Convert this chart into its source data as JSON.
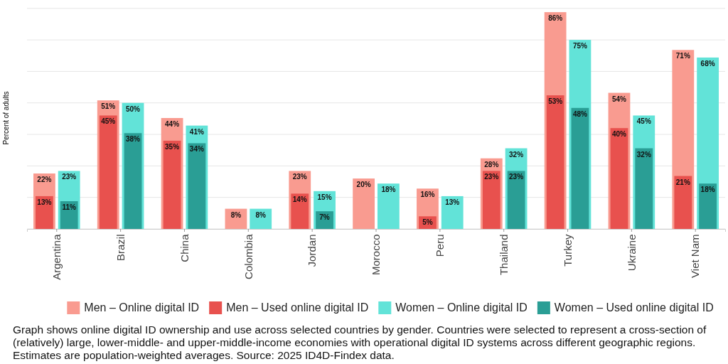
{
  "chart_data": {
    "type": "bar",
    "ylabel": "Percent of adults",
    "categories": [
      "Argentina",
      "Brazil",
      "China",
      "Colombia",
      "Jordan",
      "Morocco",
      "Peru",
      "Thailand",
      "Turkey",
      "Ukraine",
      "Viet Nam"
    ],
    "series": [
      {
        "name": "Men – Online digital ID",
        "color": "#f99b90",
        "values": [
          22,
          51,
          44,
          8,
          23,
          20,
          16,
          28,
          86,
          54,
          71
        ],
        "value_labels": [
          "22%",
          "51%",
          "44%",
          "8%",
          "23%",
          "20%",
          "16%",
          "28%",
          "86%",
          "54%",
          "71%"
        ]
      },
      {
        "name": "Men – Used online digital ID",
        "color": "#e8514e",
        "values": [
          13,
          45,
          35,
          null,
          14,
          null,
          5,
          23,
          53,
          40,
          21
        ],
        "value_labels": [
          "13%",
          "45%",
          "35%",
          null,
          "14%",
          null,
          "5%",
          "23%",
          "53%",
          "40%",
          "21%"
        ]
      },
      {
        "name": "Women – Online digital ID",
        "color": "#62e3d8",
        "values": [
          23,
          50,
          41,
          8,
          15,
          18,
          13,
          32,
          75,
          45,
          68
        ],
        "value_labels": [
          "23%",
          "50%",
          "41%",
          "8%",
          "15%",
          "18%",
          "13%",
          "32%",
          "75%",
          "45%",
          "68%"
        ]
      },
      {
        "name": "Women – Used online digital ID",
        "color": "#2a9e95",
        "values": [
          11,
          38,
          34,
          null,
          7,
          null,
          null,
          23,
          48,
          32,
          18
        ],
        "value_labels": [
          "11%",
          "38%",
          "34%",
          null,
          "7%",
          null,
          null,
          "23%",
          "48%",
          "32%",
          "18%"
        ]
      }
    ],
    "ylim": [
      0,
      88
    ],
    "yticks": [
      {
        "value": 0,
        "label": null
      },
      {
        "value": 12.5,
        "label": null
      },
      {
        "value": 25,
        "label": null
      },
      {
        "value": 37.5,
        "label": null
      },
      {
        "value": 50,
        "label": null
      },
      {
        "value": 62.5,
        "label": null
      },
      {
        "value": 75,
        "label": null
      },
      {
        "value": 87.5,
        "label": null
      }
    ],
    "tick_labels": "x",
    "grid": "y",
    "legend": "bottom",
    "annotations": [
      "Graph shows online digital ID ownership and use across selected countries by gender. Countries were selected to represent a cross-section of (relatively) large, lower-middle- and upper-middle-income economies with operational digital ID systems across different geographic regions. Estimates are population-weighted averages. Source: 2025 ID4D-Findex data."
    ]
  }
}
